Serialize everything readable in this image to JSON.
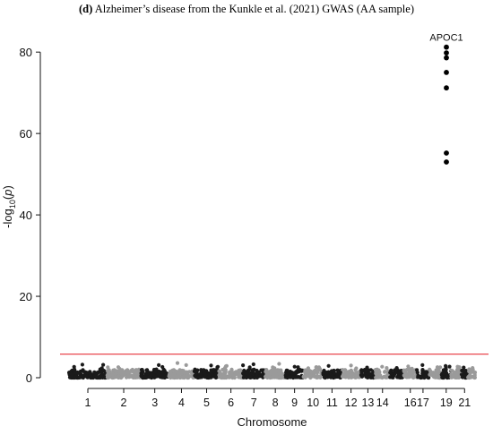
{
  "figure": {
    "panel_label": "(d)",
    "title": "Alzheimer’s disease from the Kunkle et al. (2021) GWAS (AA sample)"
  },
  "chart_data": {
    "type": "scatter",
    "subtype": "manhattan",
    "xlabel": "Chromosome",
    "ylabel": "-log10(p)",
    "ylim": [
      0,
      84
    ],
    "yticks": [
      0,
      20,
      40,
      60,
      80
    ],
    "grid": false,
    "significance_line": {
      "y": 5.8,
      "color": "#e8474d"
    },
    "chromosome_colors": [
      "#1a1a1a",
      "#9a9a9a"
    ],
    "chromosomes": [
      {
        "chr": "1",
        "start": 0,
        "end": 0.86,
        "peak": 3.2
      },
      {
        "chr": "2",
        "start": 0.86,
        "end": 1.64,
        "peak": 2.6
      },
      {
        "chr": "3",
        "start": 1.64,
        "end": 2.28,
        "peak": 3.1
      },
      {
        "chr": "4",
        "start": 2.28,
        "end": 2.86,
        "peak": 3.6
      },
      {
        "chr": "5",
        "start": 2.86,
        "end": 3.43,
        "peak": 3.0
      },
      {
        "chr": "6",
        "start": 3.43,
        "end": 3.97,
        "peak": 2.9
      },
      {
        "chr": "7",
        "start": 3.97,
        "end": 4.48,
        "peak": 3.3
      },
      {
        "chr": "8",
        "start": 4.48,
        "end": 4.95,
        "peak": 3.4
      },
      {
        "chr": "9",
        "start": 4.95,
        "end": 5.36,
        "peak": 2.7
      },
      {
        "chr": "10",
        "start": 5.36,
        "end": 5.79,
        "peak": 2.6
      },
      {
        "chr": "11",
        "start": 5.79,
        "end": 6.23,
        "peak": 2.9
      },
      {
        "chr": "12",
        "start": 6.23,
        "end": 6.66,
        "peak": 3.0
      },
      {
        "chr": "13",
        "start": 6.66,
        "end": 7.0,
        "peak": 2.5
      },
      {
        "chr": "14",
        "start": 7.0,
        "end": 7.33,
        "peak": 2.7
      },
      {
        "chr": "15",
        "start": 7.33,
        "end": 7.65,
        "peak": 2.4
      },
      {
        "chr": "16",
        "start": 7.65,
        "end": 7.95,
        "peak": 2.8
      },
      {
        "chr": "17",
        "start": 7.95,
        "end": 8.23,
        "peak": 3.1
      },
      {
        "chr": "18",
        "start": 8.23,
        "end": 8.51,
        "peak": 2.6
      },
      {
        "chr": "19",
        "start": 8.51,
        "end": 8.73,
        "peak": 2.9
      },
      {
        "chr": "20",
        "start": 8.73,
        "end": 8.96,
        "peak": 2.7
      },
      {
        "chr": "21",
        "start": 8.96,
        "end": 9.12,
        "peak": 2.5
      },
      {
        "chr": "22",
        "start": 9.12,
        "end": 9.28,
        "peak": 2.4
      }
    ],
    "x_tick_labels": [
      "1",
      "2",
      "3",
      "4",
      "5",
      "6",
      "7",
      "8",
      "9",
      "10",
      "11",
      "12",
      "13",
      "14",
      "16",
      "17",
      "19",
      "21"
    ],
    "x_tick_chromosomes": [
      "1",
      "2",
      "3",
      "4",
      "5",
      "6",
      "7",
      "8",
      "9",
      "10",
      "11",
      "12",
      "13",
      "14",
      "16",
      "17",
      "19",
      "21"
    ],
    "highlight_points": {
      "chr": "19",
      "label": "APOC1",
      "y": [
        81.2,
        79.8,
        78.6,
        75.0,
        71.2,
        55.2,
        53.0
      ]
    }
  }
}
